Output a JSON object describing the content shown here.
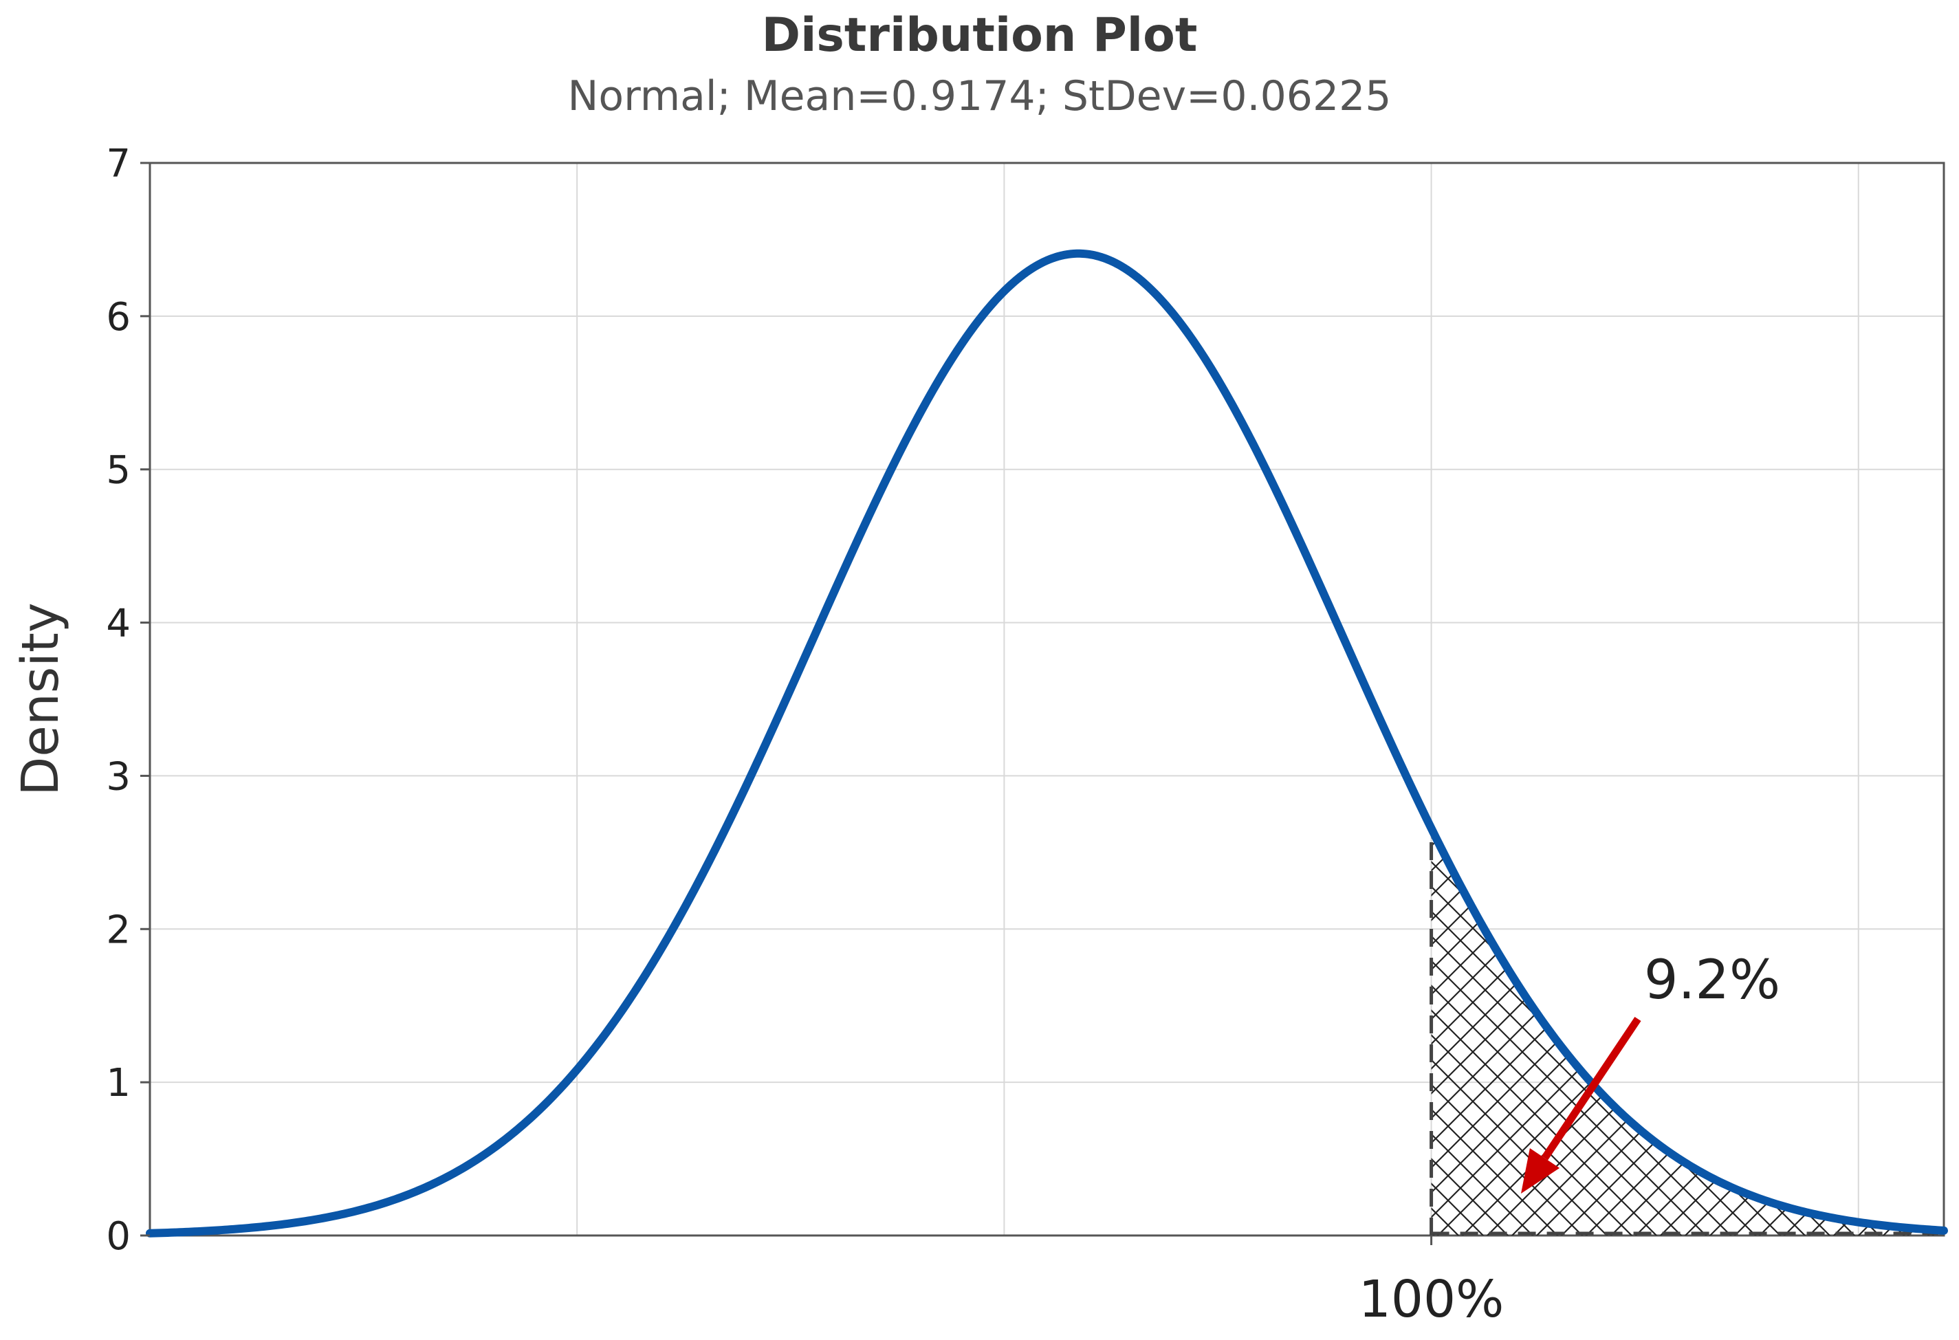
{
  "chart_data": {
    "type": "line",
    "title": "Distribution Plot",
    "subtitle": "Normal; Mean=0.9174; StDev=0.06225",
    "distribution": "normal",
    "mean": 0.9174,
    "stdev": 0.06225,
    "xlabel": "",
    "ylabel": "Density",
    "xlim": [
      0.7,
      1.12
    ],
    "ylim": [
      0,
      7
    ],
    "x_gridlines": [
      0.7,
      0.8,
      0.9,
      1.0,
      1.1
    ],
    "y_ticks": [
      0,
      1,
      2,
      3,
      4,
      5,
      6,
      7
    ],
    "x_ticks": [
      {
        "value": 1.0,
        "label": "100%"
      }
    ],
    "grid": true,
    "shaded_region": {
      "from": 1.0,
      "to": 1.12,
      "pattern": "crosshatch"
    },
    "annotation": {
      "text": "9.2%",
      "x": 1.055,
      "y": 1.7,
      "arrow_color": "#cc0000"
    },
    "colors": {
      "curve": "#0a56a8",
      "grid": "#d9d9d9",
      "axis": "#555555"
    }
  }
}
